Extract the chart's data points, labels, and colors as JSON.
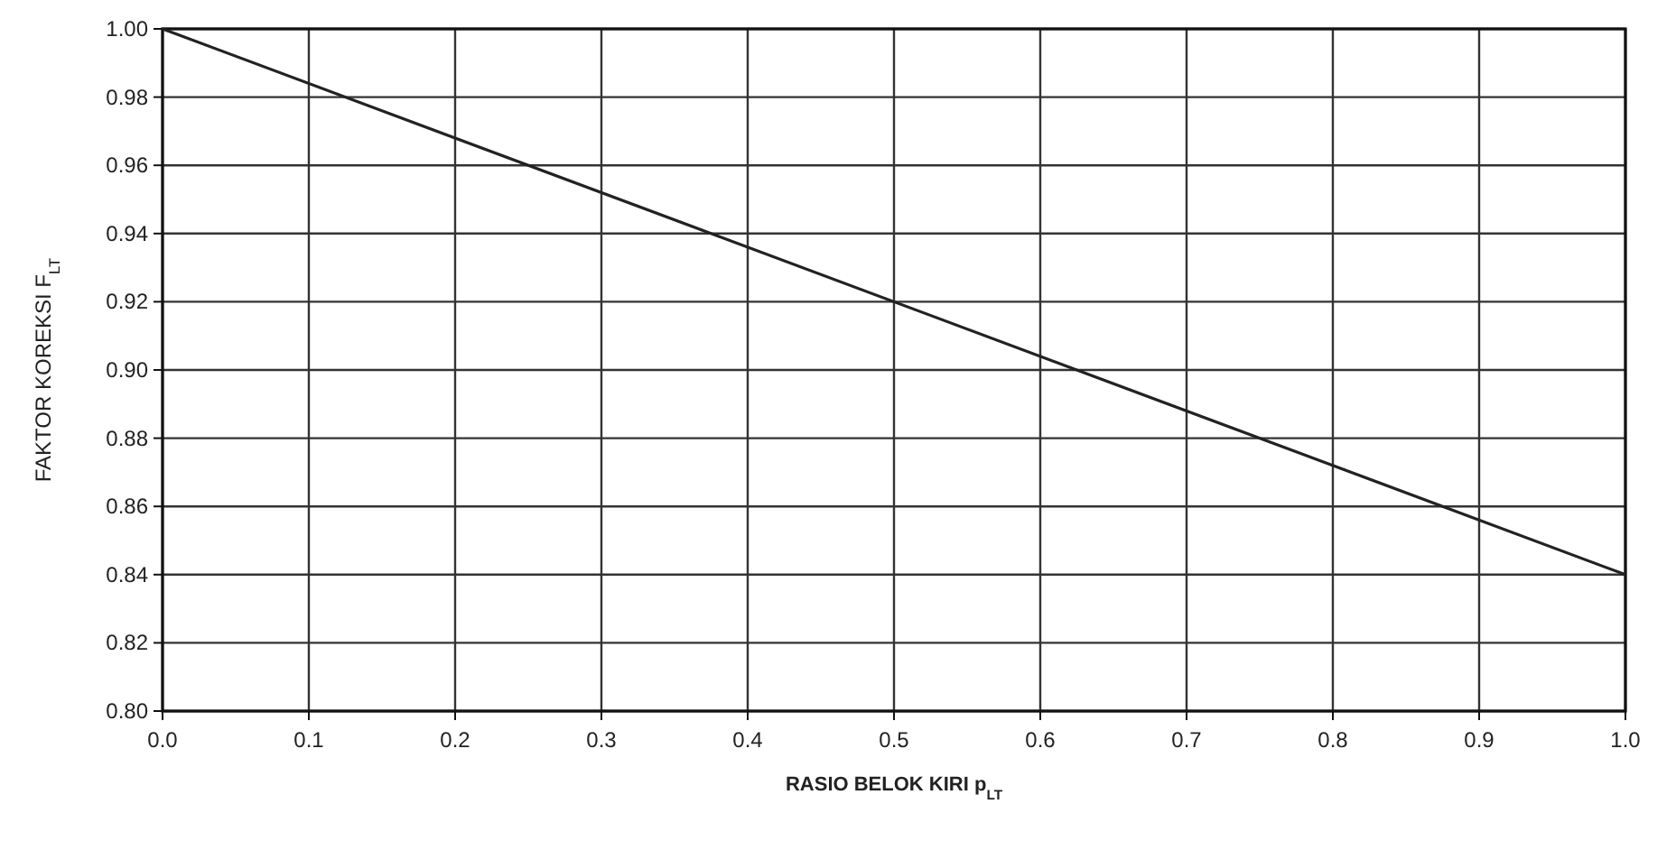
{
  "chart_data": {
    "type": "line",
    "xlabel": "RASIO BELOK KIRI p$_{LT}$",
    "ylabel": "FAKTOR KOREKSI F$_{LT}$",
    "x": [
      0,
      1.0
    ],
    "series": [
      {
        "color": "#222222",
        "values": [
          1.0,
          0.84
        ]
      }
    ],
    "xlim": [
      0,
      1.0
    ],
    "ylim": [
      0.8,
      1.0
    ],
    "xticks": [
      {
        "value": 0,
        "label": "0.0"
      },
      0.1,
      0.2,
      0.3,
      0.4,
      0.5,
      0.6,
      0.7,
      0.8,
      0.9,
      {
        "value": 1,
        "label": "1.0"
      }
    ],
    "yticks": [
      {
        "value": 0.8,
        "label": "0.80"
      },
      0.82,
      0.84,
      0.86,
      0.88,
      {
        "value": 0.9,
        "label": "0.90"
      },
      0.92,
      0.94,
      0.96,
      0.98,
      {
        "value": 1,
        "label": "1.00"
      }
    ],
    "grid": true,
    "marker": "none",
    "line_style": "solid"
  }
}
